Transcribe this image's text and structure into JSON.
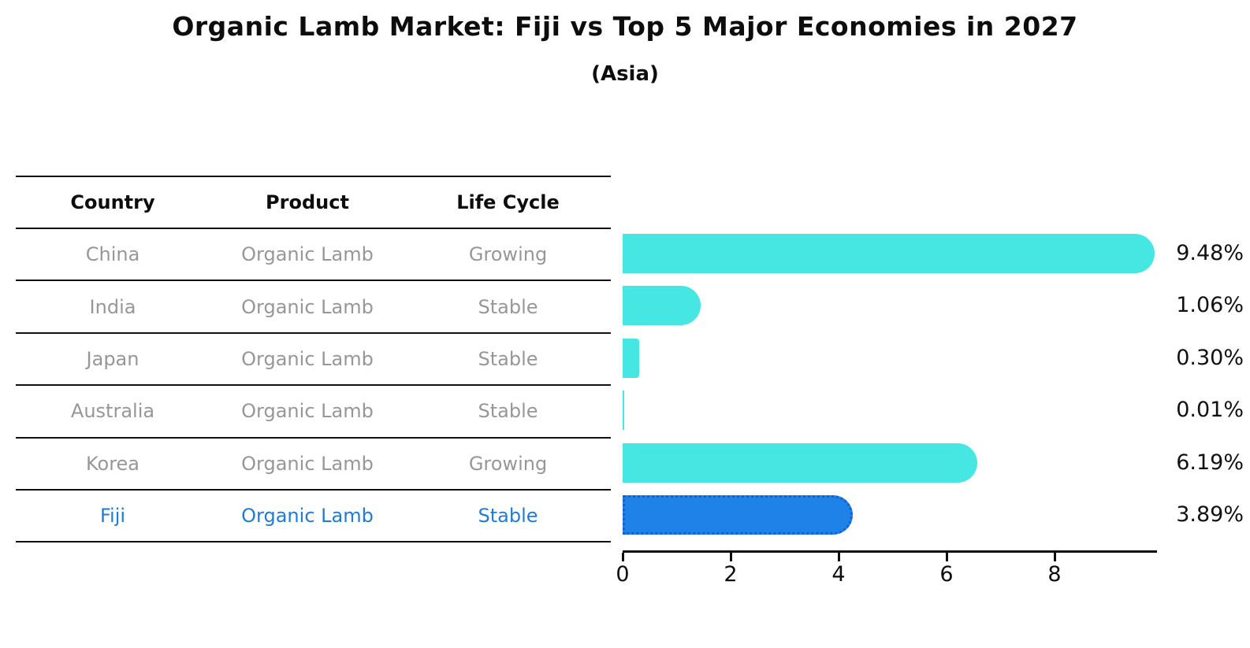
{
  "title": "Organic Lamb Market: Fiji vs Top 5 Major Economies in 2027",
  "subtitle": "(Asia)",
  "table": {
    "headers": [
      "Country",
      "Product",
      "Life Cycle"
    ],
    "rows": [
      {
        "country": "China",
        "product": "Organic Lamb",
        "life_cycle": "Growing",
        "value": 9.48,
        "label": "9.48%",
        "highlight": false
      },
      {
        "country": "India",
        "product": "Organic Lamb",
        "life_cycle": "Stable",
        "value": 1.06,
        "label": "1.06%",
        "highlight": false
      },
      {
        "country": "Japan",
        "product": "Organic Lamb",
        "life_cycle": "Stable",
        "value": 0.3,
        "label": "0.30%",
        "highlight": false
      },
      {
        "country": "Australia",
        "product": "Organic Lamb",
        "life_cycle": "Stable",
        "value": 0.01,
        "label": "0.01%",
        "highlight": false
      },
      {
        "country": "Korea",
        "product": "Organic Lamb",
        "life_cycle": "Growing",
        "value": 6.19,
        "label": "6.19%",
        "highlight": false
      },
      {
        "country": "Fiji",
        "product": "Organic Lamb",
        "life_cycle": "Stable",
        "value": 3.89,
        "label": "3.89%",
        "highlight": true
      }
    ]
  },
  "chart_data": {
    "type": "bar",
    "orientation": "horizontal",
    "title": "Organic Lamb Market: Fiji vs Top 5 Major Economies in 2027",
    "subtitle": "(Asia)",
    "categories": [
      "China",
      "India",
      "Japan",
      "Australia",
      "Korea",
      "Fiji"
    ],
    "values": [
      9.48,
      1.06,
      0.3,
      0.01,
      6.19,
      3.89
    ],
    "value_labels": [
      "9.48%",
      "1.06%",
      "0.30%",
      "0.01%",
      "6.19%",
      "3.89%"
    ],
    "xlabel": "",
    "ylabel": "",
    "xlim": [
      0,
      9.9
    ],
    "xticks": [
      0,
      2,
      4,
      6,
      8
    ],
    "grid": false,
    "legend": false,
    "highlight_category": "Fiji",
    "bar_color": "#46e6e3",
    "highlight_bar_color": "#1e82e8",
    "highlight_border_color": "#1261cc",
    "highlight_text_color": "#1e7cd6"
  },
  "colors": {
    "bar": "#46e6e3",
    "highlight_bar": "#1e82e8",
    "highlight_border": "#1261cc",
    "highlight_text": "#1e7cd6",
    "table_text": "#979797",
    "axis": "#0d0d0d"
  }
}
